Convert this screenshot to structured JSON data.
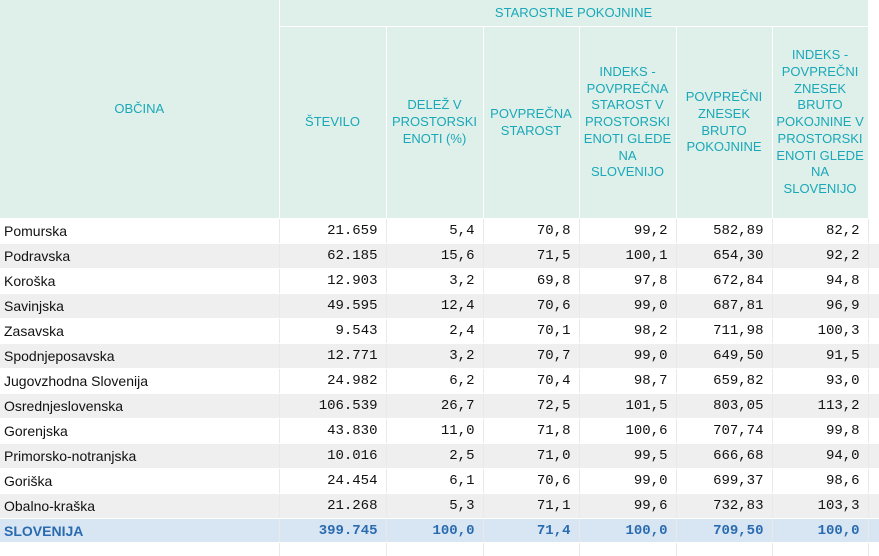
{
  "table": {
    "group_header": "STAROSTNE POKOJNINE",
    "row_header": "OBČINA",
    "columns": [
      "ŠTEVILO",
      "DELEŽ V PROSTORSKI ENOTI (%)",
      "POVPREČNA STAROST",
      "INDEKS - POVPREČNA STAROST V PROSTORSKI ENOTI GLEDE NA SLOVENIJO",
      "POVPREČNI ZNESEK BRUTO POKOJNINE",
      "INDEKS - POVPREČNI ZNESEK BRUTO POKOJNINE V PROSTORSKI ENOTI GLEDE NA SLOVENIJO"
    ],
    "rows": [
      {
        "name": "Pomurska",
        "values": [
          "21.659",
          "5,4",
          "70,8",
          "99,2",
          "582,89",
          "82,2"
        ]
      },
      {
        "name": "Podravska",
        "values": [
          "62.185",
          "15,6",
          "71,5",
          "100,1",
          "654,30",
          "92,2"
        ]
      },
      {
        "name": "Koroška",
        "values": [
          "12.903",
          "3,2",
          "69,8",
          "97,8",
          "672,84",
          "94,8"
        ]
      },
      {
        "name": "Savinjska",
        "values": [
          "49.595",
          "12,4",
          "70,6",
          "99,0",
          "687,81",
          "96,9"
        ]
      },
      {
        "name": "Zasavska",
        "values": [
          "9.543",
          "2,4",
          "70,1",
          "98,2",
          "711,98",
          "100,3"
        ]
      },
      {
        "name": "Spodnjeposavska",
        "values": [
          "12.771",
          "3,2",
          "70,7",
          "99,0",
          "649,50",
          "91,5"
        ]
      },
      {
        "name": "Jugovzhodna Slovenija",
        "values": [
          "24.982",
          "6,2",
          "70,4",
          "98,7",
          "659,82",
          "93,0"
        ]
      },
      {
        "name": "Osrednjeslovenska",
        "values": [
          "106.539",
          "26,7",
          "72,5",
          "101,5",
          "803,05",
          "113,2"
        ]
      },
      {
        "name": "Gorenjska",
        "values": [
          "43.830",
          "11,0",
          "71,8",
          "100,6",
          "707,74",
          "99,8"
        ]
      },
      {
        "name": "Primorsko-notranjska",
        "values": [
          "10.016",
          "2,5",
          "71,0",
          "99,5",
          "666,68",
          "94,0"
        ]
      },
      {
        "name": "Goriška",
        "values": [
          "24.454",
          "6,1",
          "70,6",
          "99,0",
          "699,37",
          "98,6"
        ]
      },
      {
        "name": "Obalno-kraška",
        "values": [
          "21.268",
          "5,3",
          "71,1",
          "99,6",
          "732,83",
          "103,3"
        ]
      }
    ],
    "total": {
      "name": "SLOVENIJA",
      "values": [
        "399.745",
        "100,0",
        "71,4",
        "100,0",
        "709,50",
        "100,0"
      ]
    }
  }
}
